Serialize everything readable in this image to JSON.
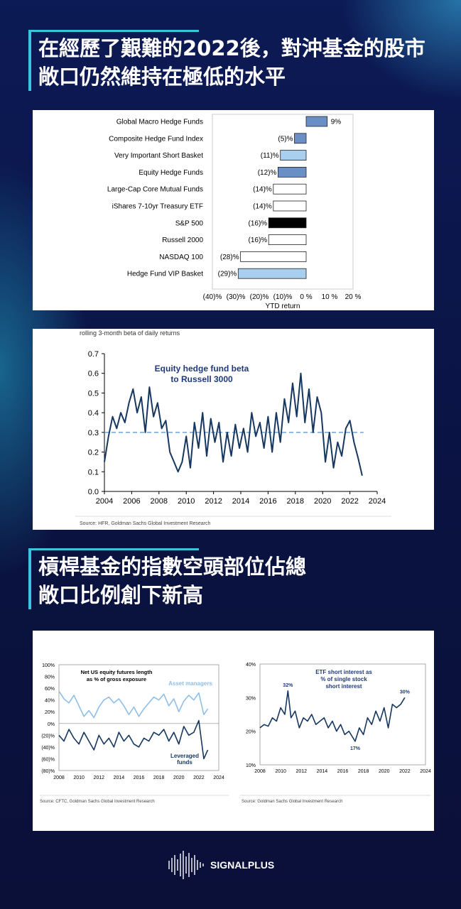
{
  "headings": {
    "top_line1": "在經歷了艱難的2022後，對沖基金的股市",
    "top_line2": "敞口仍然維持在極低的水平",
    "bottom_line1": "槓桿基金的指數空頭部位佔總",
    "bottom_line2": "敞口比例創下新高"
  },
  "brand": "SIGNALPLUS",
  "chart_data": [
    {
      "type": "bar",
      "orientation": "horizontal",
      "categories": [
        "Global Macro Hedge Funds",
        "Composite Hedge Fund Index",
        "Very Important Short Basket",
        "Equity Hedge Funds",
        "Large-Cap Core Mutual Funds",
        "iShares 7-10yr Treasury ETF",
        "S&P 500",
        "Russell 2000",
        "NASDAQ 100",
        "Hedge Fund VIP Basket"
      ],
      "values": [
        9,
        -5,
        -11,
        -12,
        -14,
        -14,
        -16,
        -16,
        -28,
        -29
      ],
      "value_labels": [
        "9%",
        "(5)%",
        "(11)%",
        "(12)%",
        "(14)%",
        "(14)%",
        "(16)%",
        "(16)%",
        "(28)%",
        "(29)%"
      ],
      "bar_colors": [
        "#6a8fc5",
        "#6a8fc5",
        "#a9cfef",
        "#6a8fc5",
        "#ffffff",
        "#ffffff",
        "#000000",
        "#ffffff",
        "#ffffff",
        "#a9cfef"
      ],
      "xlabel": "YTD return",
      "xlim": [
        -40,
        20
      ],
      "xticks": [
        -40,
        -30,
        -20,
        -10,
        0,
        10,
        20
      ],
      "xtick_labels": [
        "(40)%",
        "(30)%",
        "(20)%",
        "(10)%",
        "0 %",
        "10 %",
        "20 %"
      ]
    },
    {
      "type": "line",
      "subtitle": "rolling 3-month beta of daily returns",
      "annotation": [
        "Equity hedge fund beta",
        "to Russell 3000"
      ],
      "source": "Source: HFR, Goldman Sachs Global Investment Research",
      "xlim": [
        2004,
        2024
      ],
      "ylim": [
        0,
        0.7
      ],
      "xticks": [
        2004,
        2006,
        2008,
        2010,
        2012,
        2014,
        2016,
        2018,
        2020,
        2022,
        2024
      ],
      "yticks": [
        0.0,
        0.1,
        0.2,
        0.3,
        0.4,
        0.5,
        0.6,
        0.7
      ],
      "ytick_labels": [
        "0.0",
        "0.1",
        "0.2",
        "0.3",
        "0.4",
        "0.5",
        "0.6",
        "0.7"
      ],
      "reference_line": 0.3,
      "series": [
        {
          "color": "#16375f",
          "x": [
            2004.0,
            2004.3,
            2004.6,
            2004.9,
            2005.2,
            2005.5,
            2005.8,
            2006.1,
            2006.4,
            2006.7,
            2007.0,
            2007.3,
            2007.6,
            2007.9,
            2008.2,
            2008.5,
            2008.8,
            2009.1,
            2009.4,
            2009.7,
            2010.0,
            2010.3,
            2010.6,
            2010.9,
            2011.2,
            2011.5,
            2011.8,
            2012.1,
            2012.4,
            2012.7,
            2013.0,
            2013.3,
            2013.6,
            2013.9,
            2014.2,
            2014.5,
            2014.8,
            2015.1,
            2015.4,
            2015.7,
            2016.0,
            2016.3,
            2016.6,
            2016.9,
            2017.2,
            2017.5,
            2017.8,
            2018.1,
            2018.4,
            2018.7,
            2019.0,
            2019.3,
            2019.6,
            2019.9,
            2020.2,
            2020.5,
            2020.8,
            2021.1,
            2021.4,
            2021.7,
            2022.0,
            2022.3,
            2022.6,
            2022.9
          ],
          "y": [
            0.15,
            0.28,
            0.38,
            0.32,
            0.4,
            0.35,
            0.45,
            0.52,
            0.4,
            0.48,
            0.3,
            0.53,
            0.38,
            0.45,
            0.32,
            0.36,
            0.2,
            0.15,
            0.1,
            0.15,
            0.28,
            0.12,
            0.35,
            0.22,
            0.4,
            0.18,
            0.37,
            0.25,
            0.35,
            0.15,
            0.3,
            0.18,
            0.34,
            0.22,
            0.32,
            0.2,
            0.4,
            0.28,
            0.35,
            0.22,
            0.38,
            0.2,
            0.4,
            0.25,
            0.47,
            0.35,
            0.55,
            0.38,
            0.6,
            0.35,
            0.52,
            0.3,
            0.48,
            0.4,
            0.15,
            0.3,
            0.12,
            0.25,
            0.18,
            0.32,
            0.36,
            0.25,
            0.17,
            0.08
          ]
        }
      ]
    },
    {
      "type": "line",
      "title": [
        "Net US equity futures length",
        "as % of gross exposure"
      ],
      "source": "Source: CFTC, Goldman Sachs Global Investment Research",
      "xlim": [
        2008,
        2024
      ],
      "ylim": [
        -80,
        100
      ],
      "xticks": [
        2008,
        2010,
        2012,
        2014,
        2016,
        2018,
        2020,
        2022,
        2024
      ],
      "yticks": [
        -80,
        -60,
        -40,
        -20,
        0,
        20,
        40,
        60,
        80,
        100
      ],
      "ytick_labels": [
        "(80)%",
        "(60)%",
        "(40)%",
        "(20)%",
        "0%",
        "20%",
        "40%",
        "60%",
        "80%",
        "100%"
      ],
      "series": [
        {
          "name": "Asset managers",
          "color": "#8fbfe6",
          "x": [
            2008.0,
            2008.5,
            2009.0,
            2009.5,
            2010.0,
            2010.5,
            2011.0,
            2011.5,
            2012.0,
            2012.5,
            2013.0,
            2013.5,
            2014.0,
            2014.5,
            2015.0,
            2015.5,
            2016.0,
            2016.5,
            2017.0,
            2017.5,
            2018.0,
            2018.5,
            2019.0,
            2019.5,
            2020.0,
            2020.5,
            2021.0,
            2021.5,
            2022.0,
            2022.5,
            2022.9
          ],
          "y": [
            55,
            42,
            35,
            48,
            30,
            12,
            22,
            10,
            28,
            40,
            45,
            35,
            42,
            30,
            15,
            28,
            12,
            25,
            35,
            45,
            40,
            50,
            30,
            42,
            20,
            38,
            48,
            40,
            52,
            15,
            25
          ]
        },
        {
          "name": "Leveraged funds",
          "color": "#16375f",
          "x": [
            2008.0,
            2008.5,
            2009.0,
            2009.5,
            2010.0,
            2010.5,
            2011.0,
            2011.5,
            2012.0,
            2012.5,
            2013.0,
            2013.5,
            2014.0,
            2014.5,
            2015.0,
            2015.5,
            2016.0,
            2016.5,
            2017.0,
            2017.5,
            2018.0,
            2018.5,
            2019.0,
            2019.5,
            2020.0,
            2020.5,
            2021.0,
            2021.5,
            2022.0,
            2022.5,
            2022.9
          ],
          "y": [
            -20,
            -30,
            -10,
            -25,
            -35,
            -15,
            -30,
            -45,
            -20,
            -35,
            -25,
            -40,
            -15,
            -30,
            -20,
            -35,
            -40,
            -25,
            -30,
            -15,
            -20,
            -10,
            -30,
            -15,
            -35,
            -5,
            -20,
            -15,
            5,
            -60,
            -45
          ]
        }
      ]
    },
    {
      "type": "line",
      "title": [
        "ETF short interest as",
        "% of single stock",
        "short interest"
      ],
      "source": "Source: Goldman Sachs Global Investment Research",
      "xlim": [
        2008,
        2024
      ],
      "ylim": [
        10,
        40
      ],
      "xticks": [
        2008,
        2010,
        2012,
        2014,
        2016,
        2018,
        2020,
        2022,
        2024
      ],
      "yticks": [
        10,
        20,
        30,
        40
      ],
      "ytick_labels": [
        "10%",
        "20%",
        "30%",
        "40%"
      ],
      "point_labels": [
        {
          "x": 2010.7,
          "y": 32,
          "text": "32%"
        },
        {
          "x": 2017.2,
          "y": 17,
          "text": "17%"
        },
        {
          "x": 2022.0,
          "y": 30,
          "text": "30%"
        }
      ],
      "series": [
        {
          "color": "#16375f",
          "x": [
            2008.0,
            2008.4,
            2008.8,
            2009.2,
            2009.6,
            2010.0,
            2010.4,
            2010.7,
            2011.0,
            2011.4,
            2011.8,
            2012.2,
            2012.6,
            2013.0,
            2013.4,
            2013.8,
            2014.2,
            2014.6,
            2015.0,
            2015.4,
            2015.8,
            2016.2,
            2016.6,
            2017.0,
            2017.2,
            2017.6,
            2018.0,
            2018.4,
            2018.8,
            2019.2,
            2019.6,
            2020.0,
            2020.4,
            2020.8,
            2021.2,
            2021.6,
            2022.0
          ],
          "y": [
            21,
            22,
            21.5,
            24,
            23,
            27,
            25,
            32,
            24,
            26,
            21,
            24,
            23,
            25,
            22,
            23,
            24,
            21,
            23,
            20,
            22,
            19,
            20,
            18,
            17,
            21,
            19,
            24,
            22,
            26,
            23,
            27,
            21,
            28,
            27,
            28,
            30
          ]
        }
      ]
    }
  ]
}
